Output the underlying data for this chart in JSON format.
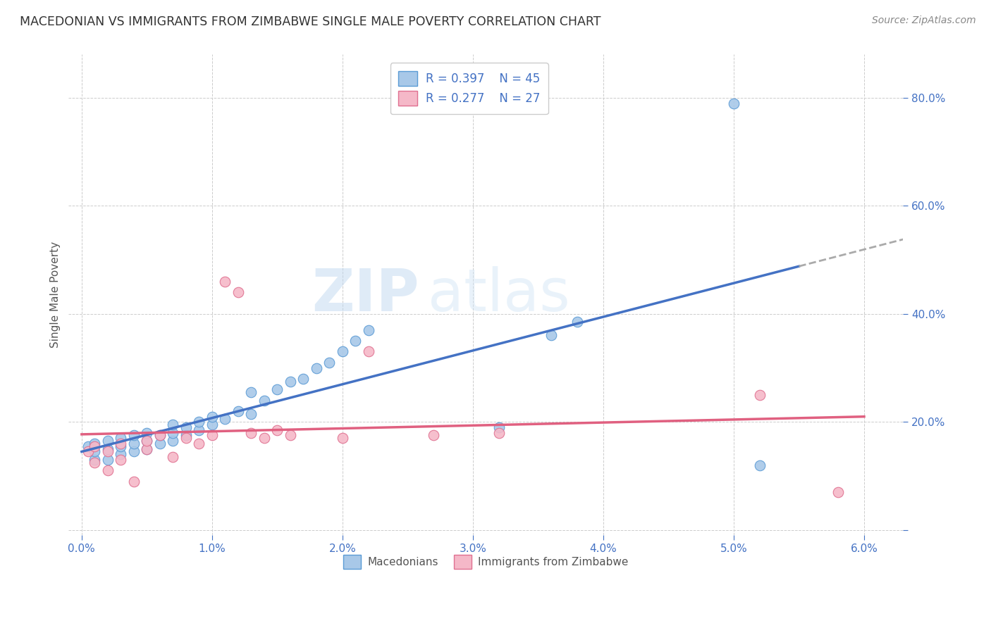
{
  "title": "MACEDONIAN VS IMMIGRANTS FROM ZIMBABWE SINGLE MALE POVERTY CORRELATION CHART",
  "source": "Source: ZipAtlas.com",
  "ylabel": "Single Male Poverty",
  "legend_macedonian": "Macedonians",
  "legend_zimbabwe": "Immigrants from Zimbabwe",
  "legend_r1": "R = 0.397",
  "legend_n1": "N = 45",
  "legend_r2": "R = 0.277",
  "legend_n2": "N = 27",
  "blue_color": "#a8c8e8",
  "pink_color": "#f5b8c8",
  "blue_edge_color": "#5b9bd5",
  "pink_edge_color": "#e07090",
  "blue_line_color": "#4472c4",
  "pink_line_color": "#e06080",
  "dashed_line_color": "#aaaaaa",
  "watermark_zip": "ZIP",
  "watermark_atlas": "atlas",
  "background_color": "#ffffff",
  "grid_color": "#cccccc",
  "macedonian_x": [
    0.0005,
    0.001,
    0.001,
    0.001,
    0.002,
    0.002,
    0.002,
    0.003,
    0.003,
    0.003,
    0.004,
    0.004,
    0.004,
    0.005,
    0.005,
    0.005,
    0.006,
    0.006,
    0.007,
    0.007,
    0.007,
    0.008,
    0.008,
    0.009,
    0.009,
    0.01,
    0.01,
    0.011,
    0.012,
    0.013,
    0.013,
    0.014,
    0.015,
    0.016,
    0.017,
    0.018,
    0.019,
    0.02,
    0.021,
    0.022,
    0.032,
    0.036,
    0.038,
    0.052,
    0.05
  ],
  "macedonian_y": [
    0.155,
    0.13,
    0.145,
    0.16,
    0.13,
    0.15,
    0.165,
    0.14,
    0.155,
    0.17,
    0.145,
    0.16,
    0.175,
    0.15,
    0.165,
    0.18,
    0.16,
    0.175,
    0.165,
    0.18,
    0.195,
    0.175,
    0.19,
    0.185,
    0.2,
    0.195,
    0.21,
    0.205,
    0.22,
    0.215,
    0.255,
    0.24,
    0.26,
    0.275,
    0.28,
    0.3,
    0.31,
    0.33,
    0.35,
    0.37,
    0.19,
    0.36,
    0.385,
    0.12,
    0.79
  ],
  "zimbabwe_x": [
    0.0005,
    0.001,
    0.001,
    0.002,
    0.002,
    0.003,
    0.003,
    0.004,
    0.005,
    0.005,
    0.006,
    0.007,
    0.008,
    0.009,
    0.01,
    0.011,
    0.012,
    0.013,
    0.014,
    0.015,
    0.016,
    0.02,
    0.022,
    0.027,
    0.032,
    0.052,
    0.058
  ],
  "zimbabwe_y": [
    0.145,
    0.125,
    0.155,
    0.11,
    0.145,
    0.13,
    0.16,
    0.09,
    0.15,
    0.165,
    0.175,
    0.135,
    0.17,
    0.16,
    0.175,
    0.46,
    0.44,
    0.18,
    0.17,
    0.185,
    0.175,
    0.17,
    0.33,
    0.175,
    0.18,
    0.25,
    0.07
  ],
  "xlim": [
    -0.001,
    0.063
  ],
  "ylim": [
    -0.01,
    0.88
  ],
  "xticks": [
    0.0,
    0.01,
    0.02,
    0.03,
    0.04,
    0.05,
    0.06
  ],
  "xtick_labels": [
    "0.0%",
    "1.0%",
    "2.0%",
    "3.0%",
    "4.0%",
    "5.0%",
    "6.0%"
  ],
  "yticks": [
    0.0,
    0.2,
    0.4,
    0.6,
    0.8
  ],
  "ytick_labels": [
    "",
    "20.0%",
    "40.0%",
    "60.0%",
    "80.0%"
  ]
}
